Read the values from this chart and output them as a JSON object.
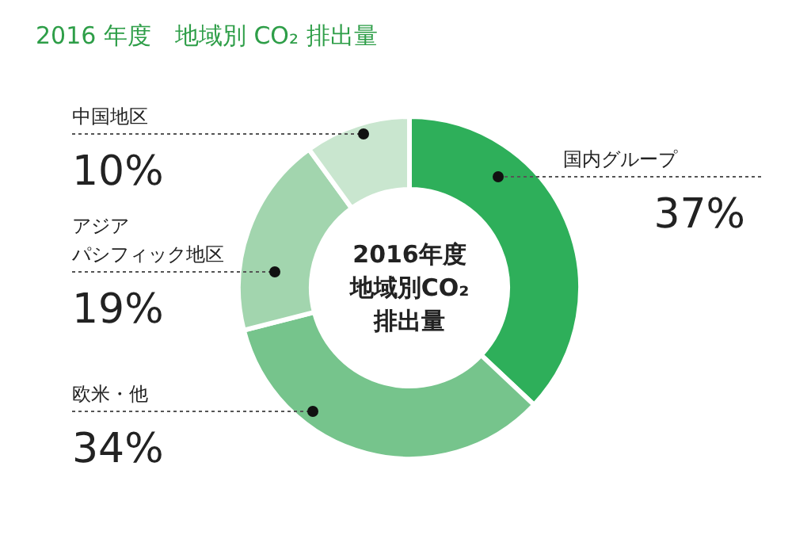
{
  "chart_data": {
    "type": "donut",
    "title": "2016 年度　地域別 CO₂ 排出量",
    "categories": [
      "国内グループ",
      "欧米・他",
      "アジアパシフィック地区",
      "中国地区"
    ],
    "values": [
      37,
      34,
      19,
      10
    ],
    "colors": [
      "#2eaf5a",
      "#76c48c",
      "#a2d5ae",
      "#c9e6cf"
    ],
    "value_labels": [
      "37%",
      "34%",
      "19%",
      "10%"
    ],
    "annotations": [
      "2016年度",
      "地域別CO₂",
      "排出量"
    ]
  }
}
